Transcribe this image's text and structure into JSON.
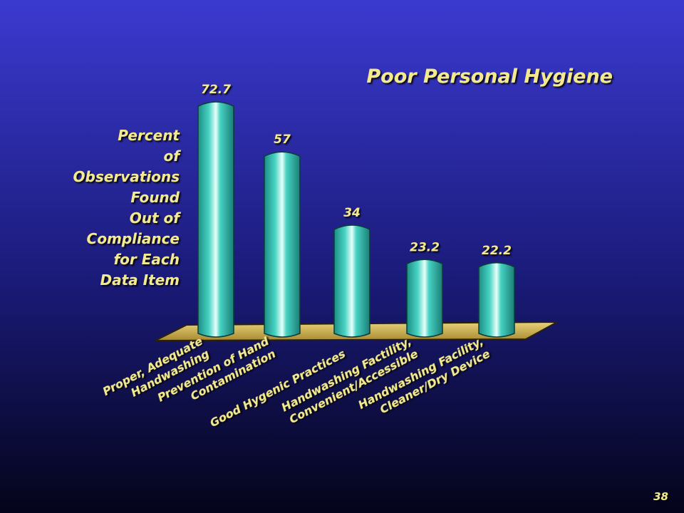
{
  "chart_data": {
    "type": "bar",
    "title": "Poor Personal Hygiene",
    "y_label": "Percent\nof\nObservations\nFound\nOut of\nCompliance\nfor Each\nData Item",
    "categories": [
      "Proper, Adequate\nHandwashing",
      "Prevention of Hand\nContamination",
      "Good Hygenic Practices",
      "Handwashing Factility,\nConvenient/Accessible",
      "Handwashing Facility,\nCleaner/Dry Device"
    ],
    "values": [
      72.7,
      57,
      34,
      23.2,
      22.2
    ],
    "color": "#3cc8b8"
  },
  "page_number": "38"
}
